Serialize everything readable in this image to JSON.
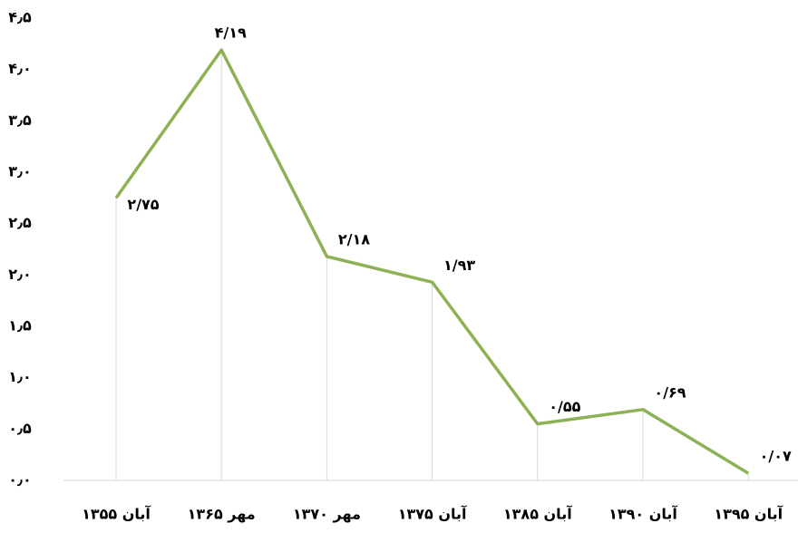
{
  "chart_data": {
    "type": "line",
    "categories": [
      "آبان ۱۳۵۵",
      "مهر ۱۳۶۵",
      "مهر ۱۳۷۰",
      "آبان ۱۳۷۵",
      "آبان ۱۳۸۵",
      "آبان ۱۳۹۰",
      "آبان ۱۳۹۵"
    ],
    "values": [
      2.75,
      4.19,
      2.18,
      1.93,
      0.55,
      0.69,
      0.07
    ],
    "value_labels": [
      "۲/۷۵",
      "۴/۱۹",
      "۲/۱۸",
      "۱/۹۳",
      "۰/۵۵",
      "۰/۶۹",
      "۰/۰۷"
    ],
    "color": "#8db255",
    "ylim": [
      0,
      4.5
    ],
    "yticks": [
      {
        "value": 0,
        "label": "۰٫۰"
      },
      {
        "value": 0.5,
        "label": "۰٫۵"
      },
      {
        "value": 1,
        "label": "۱٫۰"
      },
      {
        "value": 1.5,
        "label": "۱٫۵"
      },
      {
        "value": 2,
        "label": "۲٫۰"
      },
      {
        "value": 2.5,
        "label": "۲٫۵"
      },
      {
        "value": 3,
        "label": "۳٫۰"
      },
      {
        "value": 3.5,
        "label": "۳٫۵"
      },
      {
        "value": 4,
        "label": "۴٫۰"
      },
      {
        "value": 4.5,
        "label": "۴٫۵"
      }
    ],
    "grid": false
  }
}
